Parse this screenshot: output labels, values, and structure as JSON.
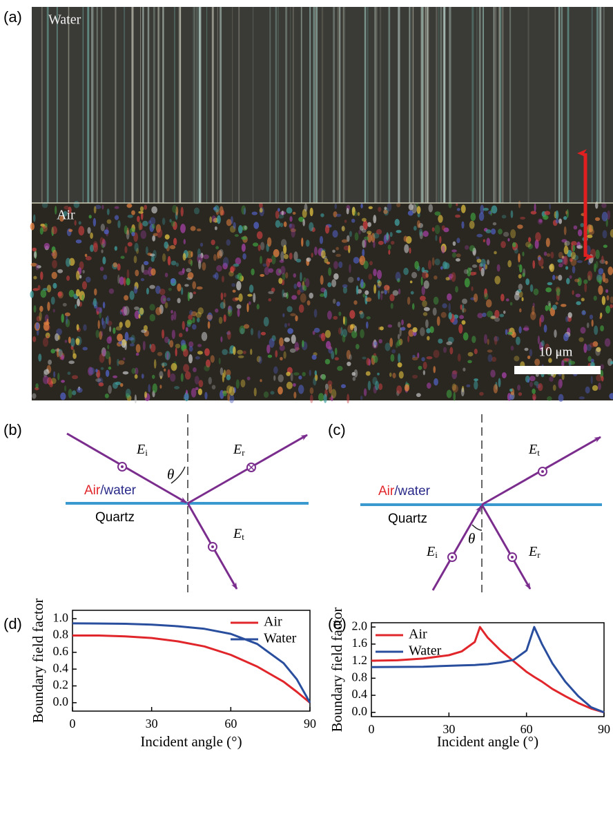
{
  "figure": {
    "panel_a": {
      "label": "(a)",
      "top_region": "Water",
      "bottom_region": "Air",
      "scale_bar": "10 μm"
    },
    "panel_b": {
      "label": "(b)",
      "incident": {
        "symbol": "E",
        "sub": "i"
      },
      "reflected": {
        "symbol": "E",
        "sub": "r"
      },
      "transmitted": {
        "symbol": "E",
        "sub": "t"
      },
      "angle": "θ",
      "medium_air": "Air",
      "medium_water": "/water",
      "substrate": "Quartz"
    },
    "panel_c": {
      "label": "(c)",
      "incident": {
        "symbol": "E",
        "sub": "i"
      },
      "reflected": {
        "symbol": "E",
        "sub": "r"
      },
      "transmitted": {
        "symbol": "E",
        "sub": "t"
      },
      "angle": "θ",
      "medium_air": "Air",
      "medium_water": "/water",
      "substrate": "Quartz"
    },
    "panel_d": {
      "label": "(d)"
    },
    "panel_e": {
      "label": "(e)"
    }
  },
  "chart_data": [
    {
      "type": "line",
      "x_label": "Incident angle (°)",
      "y_label": "Boundary field factor",
      "legend": "top-right",
      "x": [
        0,
        10,
        20,
        30,
        40,
        50,
        60,
        70,
        80,
        85,
        90
      ],
      "series": [
        {
          "name": "Air",
          "color": "#e0262b",
          "values": [
            0.8,
            0.8,
            0.79,
            0.77,
            0.73,
            0.67,
            0.57,
            0.43,
            0.25,
            0.13,
            0
          ]
        },
        {
          "name": "Water",
          "color": "#2a4e9e",
          "values": [
            0.945,
            0.943,
            0.94,
            0.93,
            0.91,
            0.88,
            0.82,
            0.7,
            0.47,
            0.28,
            0
          ]
        }
      ],
      "xlim": [
        0,
        90
      ],
      "xticks": [
        0,
        30,
        60,
        90
      ],
      "ylim": [
        -0.1,
        1.1
      ],
      "yticks": [
        {
          "value": 0,
          "label": "0.0"
        },
        0.2,
        0.4,
        0.6,
        0.8,
        {
          "value": 1,
          "label": "1.0"
        }
      ]
    },
    {
      "type": "line",
      "x_label": "Incident angle (°)",
      "y_label": "Boundary field factor",
      "legend": "top-left",
      "x": [
        0,
        10,
        20,
        30,
        35,
        40,
        42,
        45,
        50,
        55,
        60,
        63,
        66,
        70,
        75,
        80,
        85,
        90
      ],
      "series": [
        {
          "name": "Air",
          "color": "#e0262b",
          "values": [
            1.21,
            1.22,
            1.26,
            1.34,
            1.43,
            1.65,
            2.0,
            1.75,
            1.45,
            1.2,
            0.95,
            0.83,
            0.72,
            0.55,
            0.38,
            0.22,
            0.09,
            0
          ]
        },
        {
          "name": "Water",
          "color": "#2a4e9e",
          "values": [
            1.06,
            1.065,
            1.07,
            1.09,
            1.1,
            1.11,
            1.12,
            1.13,
            1.17,
            1.23,
            1.45,
            2.0,
            1.6,
            1.15,
            0.72,
            0.38,
            0.12,
            0
          ]
        }
      ],
      "xlim": [
        0,
        90
      ],
      "xticks": [
        0,
        30,
        60,
        90
      ],
      "ylim": [
        -0.1,
        2.1
      ],
      "yticks": [
        {
          "value": 0,
          "label": "0.0"
        },
        0.4,
        0.8,
        1.2,
        1.6,
        {
          "value": 2,
          "label": "2.0"
        }
      ]
    }
  ]
}
